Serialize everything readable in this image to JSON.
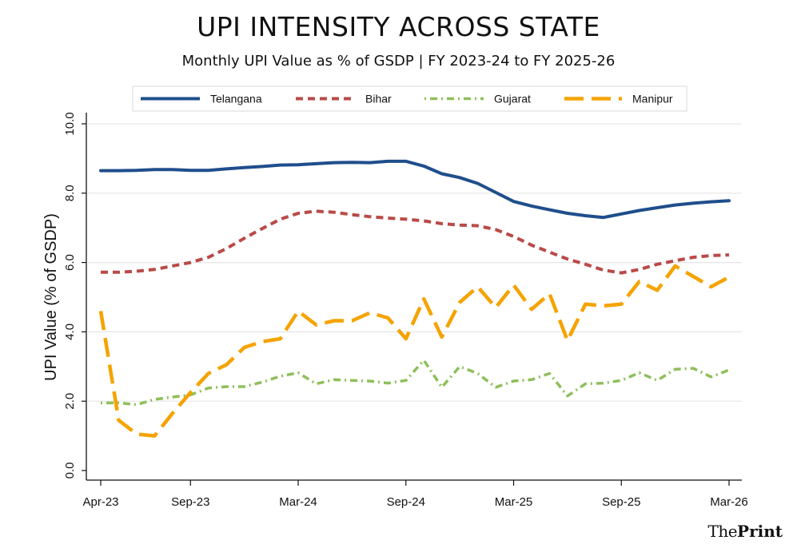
{
  "title": "UPI INTENSITY ACROSS STATE",
  "subtitle": "Monthly UPI Value as % of GSDP | FY 2023-24 to FY 2025-26",
  "brand": {
    "the": "The",
    "print": "Print"
  },
  "chart_data": {
    "type": "line",
    "title": "UPI INTENSITY ACROSS STATE",
    "subtitle": "Monthly UPI Value as % of GSDP | FY 2023-24 to FY 2025-26",
    "xlabel": "",
    "ylabel": "UPI Value (% of GSDP)",
    "ylim": [
      0,
      10
    ],
    "yticks": [
      "0.0",
      "2.0",
      "4.0",
      "6.0",
      "8.0",
      "10.0"
    ],
    "x_tick_labels": [
      "Apr-23",
      "Sep-23",
      "Mar-24",
      "Sep-24",
      "Mar-25",
      "Sep-25",
      "Mar-26"
    ],
    "x_tick_months": [
      0,
      5,
      11,
      17,
      23,
      29,
      35
    ],
    "x_range_months": [
      0,
      35
    ],
    "grid": "horizontal",
    "legend_position": "top",
    "series": [
      {
        "name": "Telangana",
        "color": "#1f4e8c",
        "style": "solid",
        "values": [
          8.65,
          8.65,
          8.66,
          8.68,
          8.68,
          8.66,
          8.66,
          8.7,
          8.74,
          8.77,
          8.81,
          8.82,
          8.85,
          8.88,
          8.89,
          8.88,
          8.92,
          8.92,
          8.78,
          8.56,
          8.45,
          8.28,
          8.02,
          7.76,
          7.63,
          7.52,
          7.42,
          7.35,
          7.3,
          7.4,
          7.5,
          7.58,
          7.66,
          7.71,
          7.75,
          7.78
        ]
      },
      {
        "name": "Bihar",
        "color": "#b94a48",
        "style": "dash",
        "values": [
          5.72,
          5.72,
          5.75,
          5.8,
          5.9,
          6.0,
          6.15,
          6.4,
          6.7,
          6.98,
          7.25,
          7.42,
          7.48,
          7.45,
          7.38,
          7.32,
          7.28,
          7.25,
          7.2,
          7.12,
          7.08,
          7.06,
          6.95,
          6.75,
          6.5,
          6.3,
          6.1,
          5.95,
          5.78,
          5.7,
          5.8,
          5.95,
          6.05,
          6.15,
          6.2,
          6.22
        ]
      },
      {
        "name": "Gujarat",
        "color": "#8fbf5a",
        "style": "dashdot",
        "values": [
          1.95,
          1.95,
          1.9,
          2.05,
          2.12,
          2.18,
          2.38,
          2.42,
          2.42,
          2.55,
          2.72,
          2.82,
          2.5,
          2.62,
          2.6,
          2.58,
          2.52,
          2.6,
          3.18,
          2.4,
          3.0,
          2.8,
          2.4,
          2.58,
          2.62,
          2.8,
          2.15,
          2.5,
          2.52,
          2.6,
          2.82,
          2.6,
          2.92,
          2.95,
          2.7,
          2.9
        ]
      },
      {
        "name": "Manipur",
        "color": "#f5a300",
        "style": "longdash",
        "values": [
          4.6,
          1.45,
          1.05,
          1.0,
          1.65,
          2.25,
          2.8,
          3.05,
          3.55,
          3.72,
          3.8,
          4.6,
          4.2,
          4.32,
          4.32,
          4.55,
          4.4,
          3.8,
          4.95,
          3.85,
          4.85,
          5.3,
          4.7,
          5.35,
          4.65,
          5.1,
          3.75,
          4.8,
          4.75,
          4.8,
          5.45,
          5.2,
          5.9,
          5.6,
          5.3,
          5.58
        ]
      }
    ]
  }
}
